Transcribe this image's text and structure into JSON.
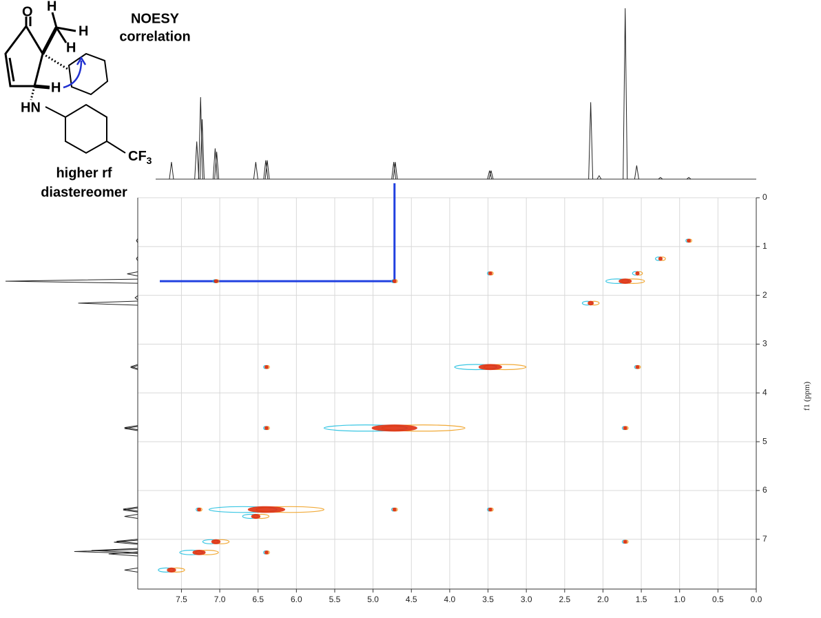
{
  "chart_data": {
    "type": "contour",
    "y_axis_label": "f1 (ppm)",
    "xlim": [
      8.07,
      0
    ],
    "ylim": [
      0,
      8.02
    ],
    "xticks": [
      7.5,
      7,
      6.5,
      6,
      5.5,
      5,
      4.5,
      4,
      3.5,
      3,
      2.5,
      2,
      1.5,
      1,
      0.5,
      0
    ],
    "xtick_labels": [
      "7.5",
      "7.0",
      "6.5",
      "6.0",
      "5.5",
      "5.0",
      "4.5",
      "4.0",
      "3.5",
      "3.0",
      "2.5",
      "2.0",
      "1.5",
      "1.0",
      "0.5",
      "0.0"
    ],
    "yticks": [
      0,
      1,
      2,
      3,
      4,
      5,
      6,
      7
    ],
    "grid": true,
    "colors": [
      "#22c0e0",
      "#e03010",
      "#f0a020"
    ],
    "peaks": {
      "x": [
        7.63,
        7.27,
        7.05,
        6.53,
        6.39,
        4.72,
        3.47,
        2.16,
        1.71,
        1.55,
        1.25,
        0.88,
        4.72,
        1.71,
        3.47,
        1.55,
        6.39,
        6.39,
        4.72,
        3.47,
        6.39,
        7.27,
        1.71,
        7.05
      ],
      "y": [
        7.63,
        7.27,
        7.05,
        6.53,
        6.39,
        4.72,
        3.47,
        2.16,
        1.71,
        1.55,
        1.25,
        0.88,
        1.71,
        4.72,
        1.55,
        3.47,
        3.47,
        4.72,
        6.39,
        6.39,
        7.27,
        6.39,
        7.05,
        1.71
      ],
      "size": [
        4,
        5,
        4,
        4,
        9,
        10,
        7,
        3,
        5,
        2,
        2,
        1,
        1,
        1,
        1,
        1,
        1,
        1,
        1,
        1,
        1,
        1,
        1,
        1
      ]
    },
    "projection": {
      "x": [
        7.63,
        7.3,
        7.25,
        7.23,
        7.06,
        7.04,
        6.53,
        6.4,
        6.38,
        4.73,
        4.71,
        3.48,
        3.46,
        2.16,
        2.05,
        1.71,
        1.56,
        1.25,
        0.88
      ],
      "height": [
        10,
        22,
        48,
        35,
        18,
        16,
        10,
        11,
        11,
        10,
        10,
        5,
        5,
        45,
        2,
        100,
        8,
        1,
        1
      ]
    },
    "noesy_correlation": {
      "x": 4.72,
      "y": 1.71
    },
    "structure": {
      "labels": [
        "O",
        "H",
        "H",
        "H",
        "H",
        "HN",
        "CF",
        "3"
      ],
      "caption": [
        "NOESY",
        "correlation",
        "higher rf",
        "diastereomer"
      ]
    }
  }
}
